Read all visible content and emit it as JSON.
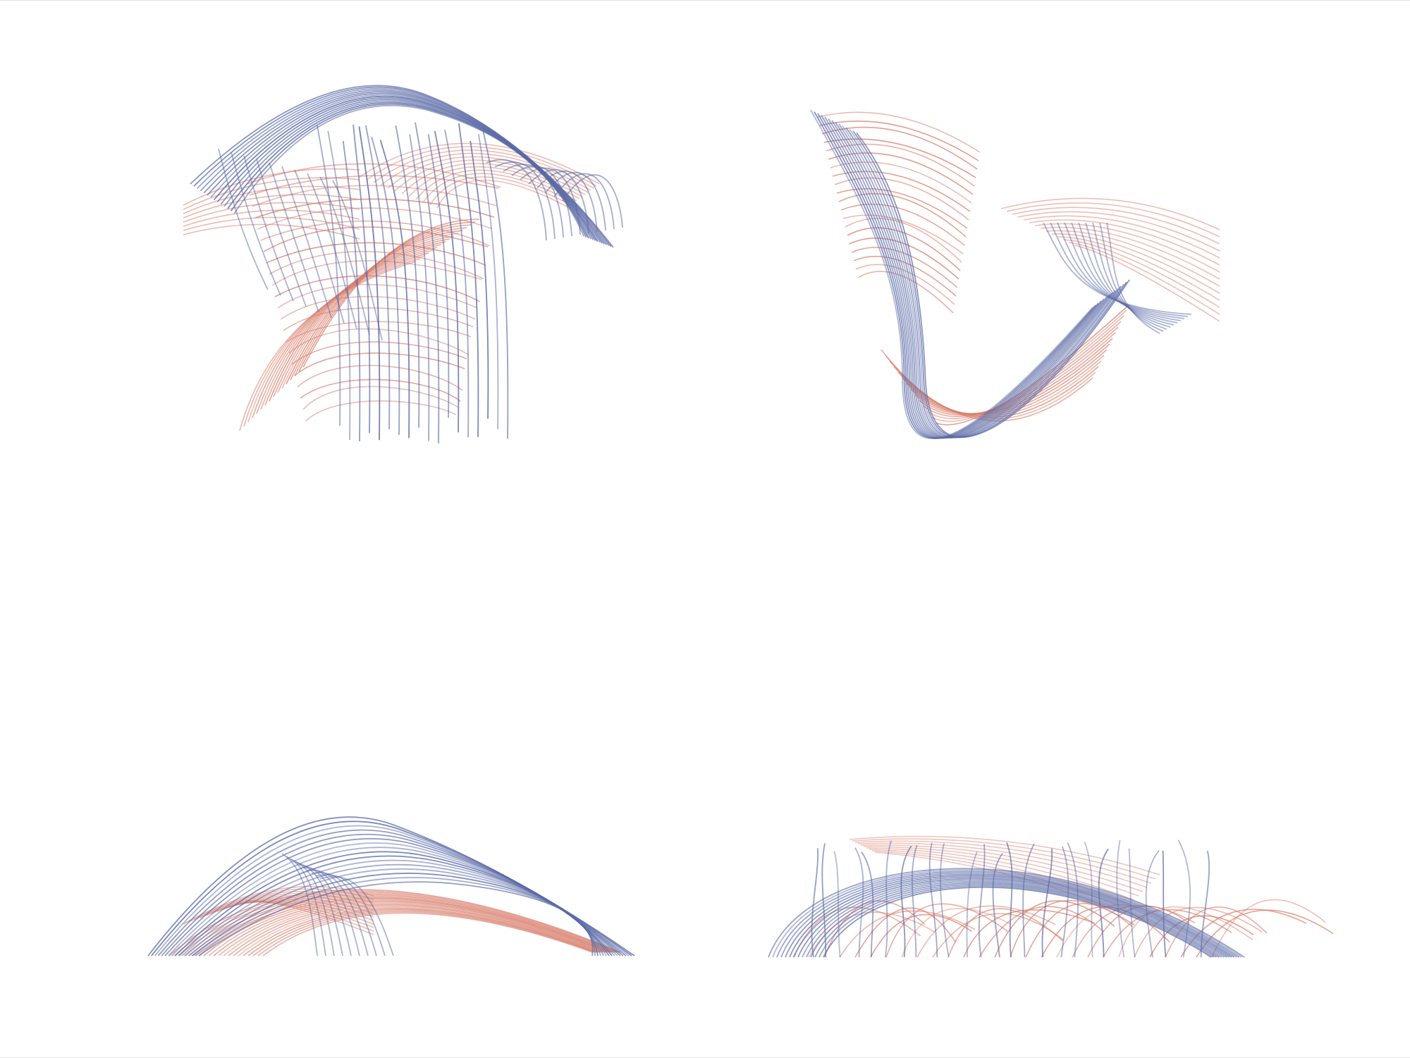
{
  "figure": {
    "views": [
      {
        "id": "view-top-left",
        "description_name": "plan-view-shape-1"
      },
      {
        "id": "view-top-right",
        "description_name": "plan-view-shape-2"
      },
      {
        "id": "view-bottom-left",
        "description_name": "elevation-view-shape-1"
      },
      {
        "id": "view-bottom-right",
        "description_name": "elevation-view-shape-2"
      }
    ],
    "colors": {
      "background": "#ffffff",
      "red_lines": "#d9806e",
      "blue_lines": "#5a6aa6",
      "frame_border": "#e3e3e3"
    }
  }
}
